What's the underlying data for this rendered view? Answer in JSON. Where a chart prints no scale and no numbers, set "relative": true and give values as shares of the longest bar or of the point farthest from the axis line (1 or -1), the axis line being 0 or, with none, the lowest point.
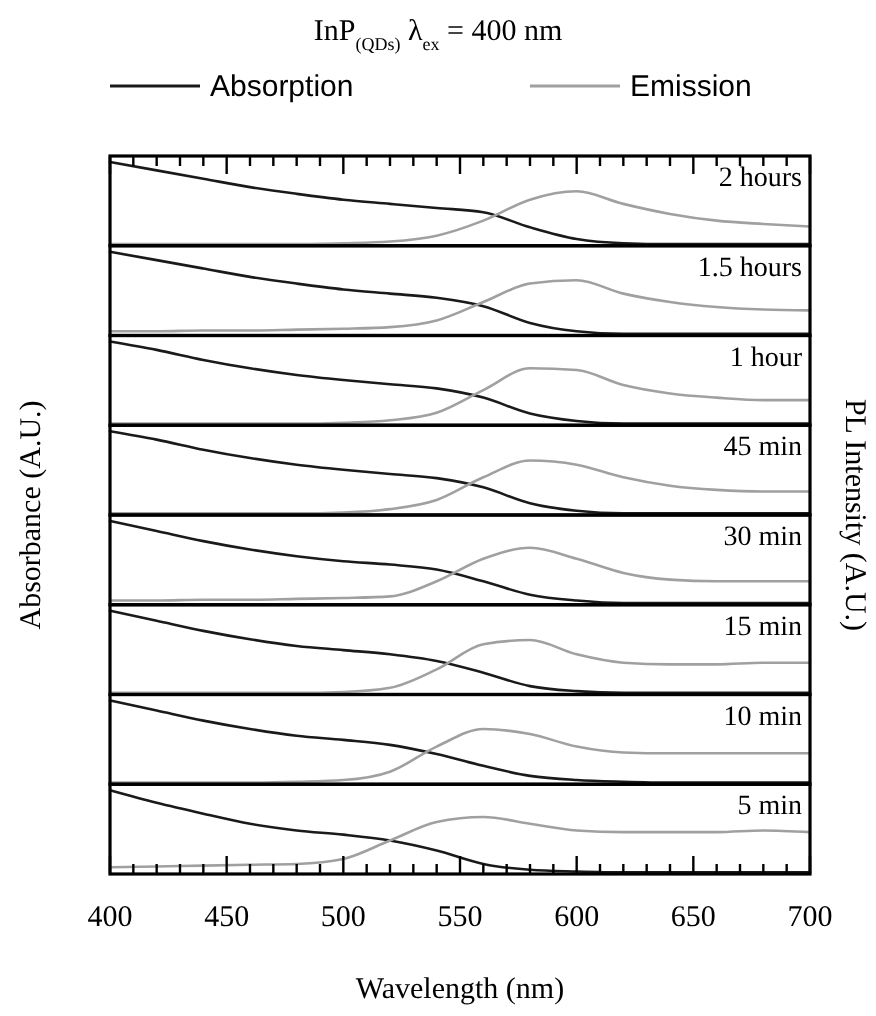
{
  "chart_data": [
    {
      "type": "line",
      "relative": true,
      "title": "InP$_{(QDs)}$ λ$_{ex}$ = 400 nm",
      "ylabel": "Absorbance (A.U.)",
      "y2label": "PL Intensity (A.U.)",
      "legend": "top",
      "tick_labels": false,
      "annotations": [
        "2 hours"
      ],
      "xlim": [
        400,
        700
      ],
      "xticks": [
        {
          "value": 400,
          "label": null
        },
        {
          "value": 410,
          "label": null
        },
        {
          "value": 420,
          "label": null
        },
        {
          "value": 430,
          "label": null
        },
        {
          "value": 440,
          "label": null
        },
        {
          "value": 450,
          "label": null
        },
        {
          "value": 460,
          "label": null
        },
        {
          "value": 470,
          "label": null
        },
        {
          "value": 480,
          "label": null
        },
        {
          "value": 490,
          "label": null
        },
        {
          "value": 500,
          "label": null
        },
        {
          "value": 510,
          "label": null
        },
        {
          "value": 520,
          "label": null
        },
        {
          "value": 530,
          "label": null
        },
        {
          "value": 540,
          "label": null
        },
        {
          "value": 550,
          "label": null
        },
        {
          "value": 560,
          "label": null
        },
        {
          "value": 570,
          "label": null
        },
        {
          "value": 580,
          "label": null
        },
        {
          "value": 590,
          "label": null
        },
        {
          "value": 600,
          "label": null
        },
        {
          "value": 610,
          "label": null
        },
        {
          "value": 620,
          "label": null
        },
        {
          "value": 630,
          "label": null
        },
        {
          "value": 640,
          "label": null
        },
        {
          "value": 650,
          "label": null
        },
        {
          "value": 660,
          "label": null
        },
        {
          "value": 670,
          "label": null
        },
        {
          "value": 680,
          "label": null
        },
        {
          "value": 690,
          "label": null
        },
        {
          "value": 700,
          "label": null
        }
      ],
      "x": [
        400,
        420,
        440,
        460,
        480,
        500,
        520,
        540,
        560,
        580,
        600,
        620,
        640,
        660,
        680,
        700
      ],
      "series": [
        {
          "name": "Absorption",
          "color": "#1a1a1a",
          "values": [
            1,
            0.9,
            0.8,
            0.7,
            0.62,
            0.55,
            0.5,
            0.45,
            0.4,
            0.22,
            0.08,
            0.03,
            0.02,
            0.02,
            0.02,
            0.02
          ]
        },
        {
          "name": "Emission",
          "color": "#a0a0a0",
          "values": [
            0.02,
            0.02,
            0.02,
            0.02,
            0.02,
            0.03,
            0.05,
            0.12,
            0.3,
            0.55,
            0.65,
            0.5,
            0.38,
            0.3,
            0.26,
            0.23
          ]
        }
      ]
    },
    {
      "type": "line",
      "relative": true,
      "tick_labels": false,
      "annotations": [
        "1.5 hours"
      ],
      "xlim": [
        400,
        700
      ],
      "x": [
        400,
        420,
        440,
        460,
        480,
        500,
        520,
        540,
        560,
        580,
        600,
        620,
        640,
        660,
        680,
        700
      ],
      "series": [
        {
          "color": "#1a1a1a",
          "values": [
            1,
            0.9,
            0.8,
            0.7,
            0.62,
            0.55,
            0.5,
            0.45,
            0.35,
            0.15,
            0.05,
            0.02,
            0.02,
            0.02,
            0.02,
            0.02
          ]
        },
        {
          "color": "#a0a0a0",
          "values": [
            0.05,
            0.05,
            0.06,
            0.06,
            0.07,
            0.08,
            0.1,
            0.18,
            0.4,
            0.62,
            0.66,
            0.5,
            0.4,
            0.34,
            0.31,
            0.3
          ]
        }
      ]
    },
    {
      "type": "line",
      "relative": true,
      "tick_labels": false,
      "annotations": [
        "1 hour"
      ],
      "xlim": [
        400,
        700
      ],
      "x": [
        400,
        420,
        440,
        460,
        480,
        500,
        520,
        540,
        560,
        580,
        600,
        620,
        640,
        660,
        680,
        700
      ],
      "series": [
        {
          "color": "#1a1a1a",
          "values": [
            1,
            0.9,
            0.78,
            0.68,
            0.6,
            0.54,
            0.49,
            0.44,
            0.33,
            0.14,
            0.05,
            0.02,
            0.02,
            0.02,
            0.02,
            0.02
          ]
        },
        {
          "color": "#a0a0a0",
          "values": [
            0.02,
            0.02,
            0.02,
            0.02,
            0.02,
            0.03,
            0.06,
            0.15,
            0.42,
            0.68,
            0.66,
            0.48,
            0.38,
            0.33,
            0.3,
            0.3
          ]
        }
      ]
    },
    {
      "type": "line",
      "relative": true,
      "tick_labels": false,
      "annotations": [
        "45 min"
      ],
      "xlim": [
        400,
        700
      ],
      "x": [
        400,
        420,
        440,
        460,
        480,
        500,
        520,
        540,
        560,
        580,
        600,
        620,
        640,
        660,
        680,
        700
      ],
      "series": [
        {
          "color": "#1a1a1a",
          "values": [
            1,
            0.9,
            0.78,
            0.68,
            0.6,
            0.54,
            0.49,
            0.44,
            0.33,
            0.14,
            0.05,
            0.02,
            0.02,
            0.02,
            0.02,
            0.02
          ]
        },
        {
          "color": "#a0a0a0",
          "values": [
            0.02,
            0.02,
            0.02,
            0.02,
            0.02,
            0.03,
            0.07,
            0.18,
            0.45,
            0.65,
            0.6,
            0.45,
            0.35,
            0.3,
            0.28,
            0.28
          ]
        }
      ]
    },
    {
      "type": "line",
      "relative": true,
      "tick_labels": false,
      "annotations": [
        "30 min"
      ],
      "xlim": [
        400,
        700
      ],
      "x": [
        400,
        420,
        440,
        460,
        480,
        500,
        520,
        540,
        560,
        580,
        600,
        620,
        640,
        660,
        680,
        700
      ],
      "series": [
        {
          "color": "#1a1a1a",
          "values": [
            1,
            0.88,
            0.76,
            0.66,
            0.58,
            0.52,
            0.48,
            0.42,
            0.28,
            0.12,
            0.05,
            0.02,
            0.02,
            0.02,
            0.02,
            0.02
          ]
        },
        {
          "color": "#a0a0a0",
          "values": [
            0.05,
            0.05,
            0.06,
            0.06,
            0.07,
            0.08,
            0.1,
            0.28,
            0.55,
            0.68,
            0.55,
            0.38,
            0.3,
            0.28,
            0.28,
            0.28
          ]
        }
      ]
    },
    {
      "type": "line",
      "relative": true,
      "tick_labels": false,
      "annotations": [
        "15 min"
      ],
      "xlim": [
        400,
        700
      ],
      "x": [
        400,
        420,
        440,
        460,
        480,
        500,
        520,
        540,
        560,
        580,
        600,
        620,
        640,
        660,
        680,
        700
      ],
      "series": [
        {
          "color": "#1a1a1a",
          "values": [
            1,
            0.88,
            0.76,
            0.66,
            0.58,
            0.53,
            0.48,
            0.4,
            0.26,
            0.1,
            0.04,
            0.02,
            0.02,
            0.02,
            0.02,
            0.02
          ]
        },
        {
          "color": "#a0a0a0",
          "values": [
            0.02,
            0.02,
            0.02,
            0.02,
            0.02,
            0.03,
            0.08,
            0.3,
            0.6,
            0.65,
            0.48,
            0.38,
            0.36,
            0.36,
            0.38,
            0.38
          ]
        }
      ]
    },
    {
      "type": "line",
      "relative": true,
      "tick_labels": false,
      "annotations": [
        "10 min"
      ],
      "xlim": [
        400,
        700
      ],
      "x": [
        400,
        420,
        440,
        460,
        480,
        500,
        520,
        540,
        560,
        580,
        600,
        620,
        640,
        660,
        680,
        700
      ],
      "series": [
        {
          "color": "#1a1a1a",
          "values": [
            1,
            0.88,
            0.76,
            0.66,
            0.58,
            0.53,
            0.47,
            0.36,
            0.22,
            0.1,
            0.05,
            0.03,
            0.02,
            0.02,
            0.02,
            0.02
          ]
        },
        {
          "color": "#a0a0a0",
          "values": [
            0.02,
            0.02,
            0.02,
            0.02,
            0.03,
            0.05,
            0.15,
            0.45,
            0.66,
            0.6,
            0.45,
            0.38,
            0.37,
            0.37,
            0.37,
            0.37
          ]
        }
      ]
    },
    {
      "type": "line",
      "relative": true,
      "tick_labels": "x",
      "annotations": [
        "5 min"
      ],
      "xlabel": "Wavelength (nm)",
      "xlim": [
        400,
        700
      ],
      "xticks": [
        400,
        {
          "value": 410,
          "label": null
        },
        {
          "value": 420,
          "label": null
        },
        {
          "value": 430,
          "label": null
        },
        {
          "value": 440,
          "label": null
        },
        450,
        {
          "value": 460,
          "label": null
        },
        {
          "value": 470,
          "label": null
        },
        {
          "value": 480,
          "label": null
        },
        {
          "value": 490,
          "label": null
        },
        500,
        {
          "value": 510,
          "label": null
        },
        {
          "value": 520,
          "label": null
        },
        {
          "value": 530,
          "label": null
        },
        {
          "value": 540,
          "label": null
        },
        550,
        {
          "value": 560,
          "label": null
        },
        {
          "value": 570,
          "label": null
        },
        {
          "value": 580,
          "label": null
        },
        {
          "value": 590,
          "label": null
        },
        600,
        {
          "value": 610,
          "label": null
        },
        {
          "value": 620,
          "label": null
        },
        {
          "value": 630,
          "label": null
        },
        {
          "value": 640,
          "label": null
        },
        650,
        {
          "value": 660,
          "label": null
        },
        {
          "value": 670,
          "label": null
        },
        {
          "value": 680,
          "label": null
        },
        {
          "value": 690,
          "label": null
        },
        700
      ],
      "x": [
        400,
        420,
        440,
        460,
        480,
        500,
        520,
        540,
        560,
        580,
        600,
        620,
        640,
        660,
        680,
        700
      ],
      "series": [
        {
          "color": "#1a1a1a",
          "values": [
            1,
            0.85,
            0.72,
            0.6,
            0.52,
            0.47,
            0.4,
            0.28,
            0.12,
            0.05,
            0.03,
            0.02,
            0.02,
            0.02,
            0.02,
            0.02
          ]
        },
        {
          "color": "#a0a0a0",
          "values": [
            0.08,
            0.09,
            0.1,
            0.11,
            0.12,
            0.18,
            0.4,
            0.62,
            0.68,
            0.6,
            0.52,
            0.5,
            0.5,
            0.5,
            0.52,
            0.5
          ]
        }
      ]
    }
  ]
}
